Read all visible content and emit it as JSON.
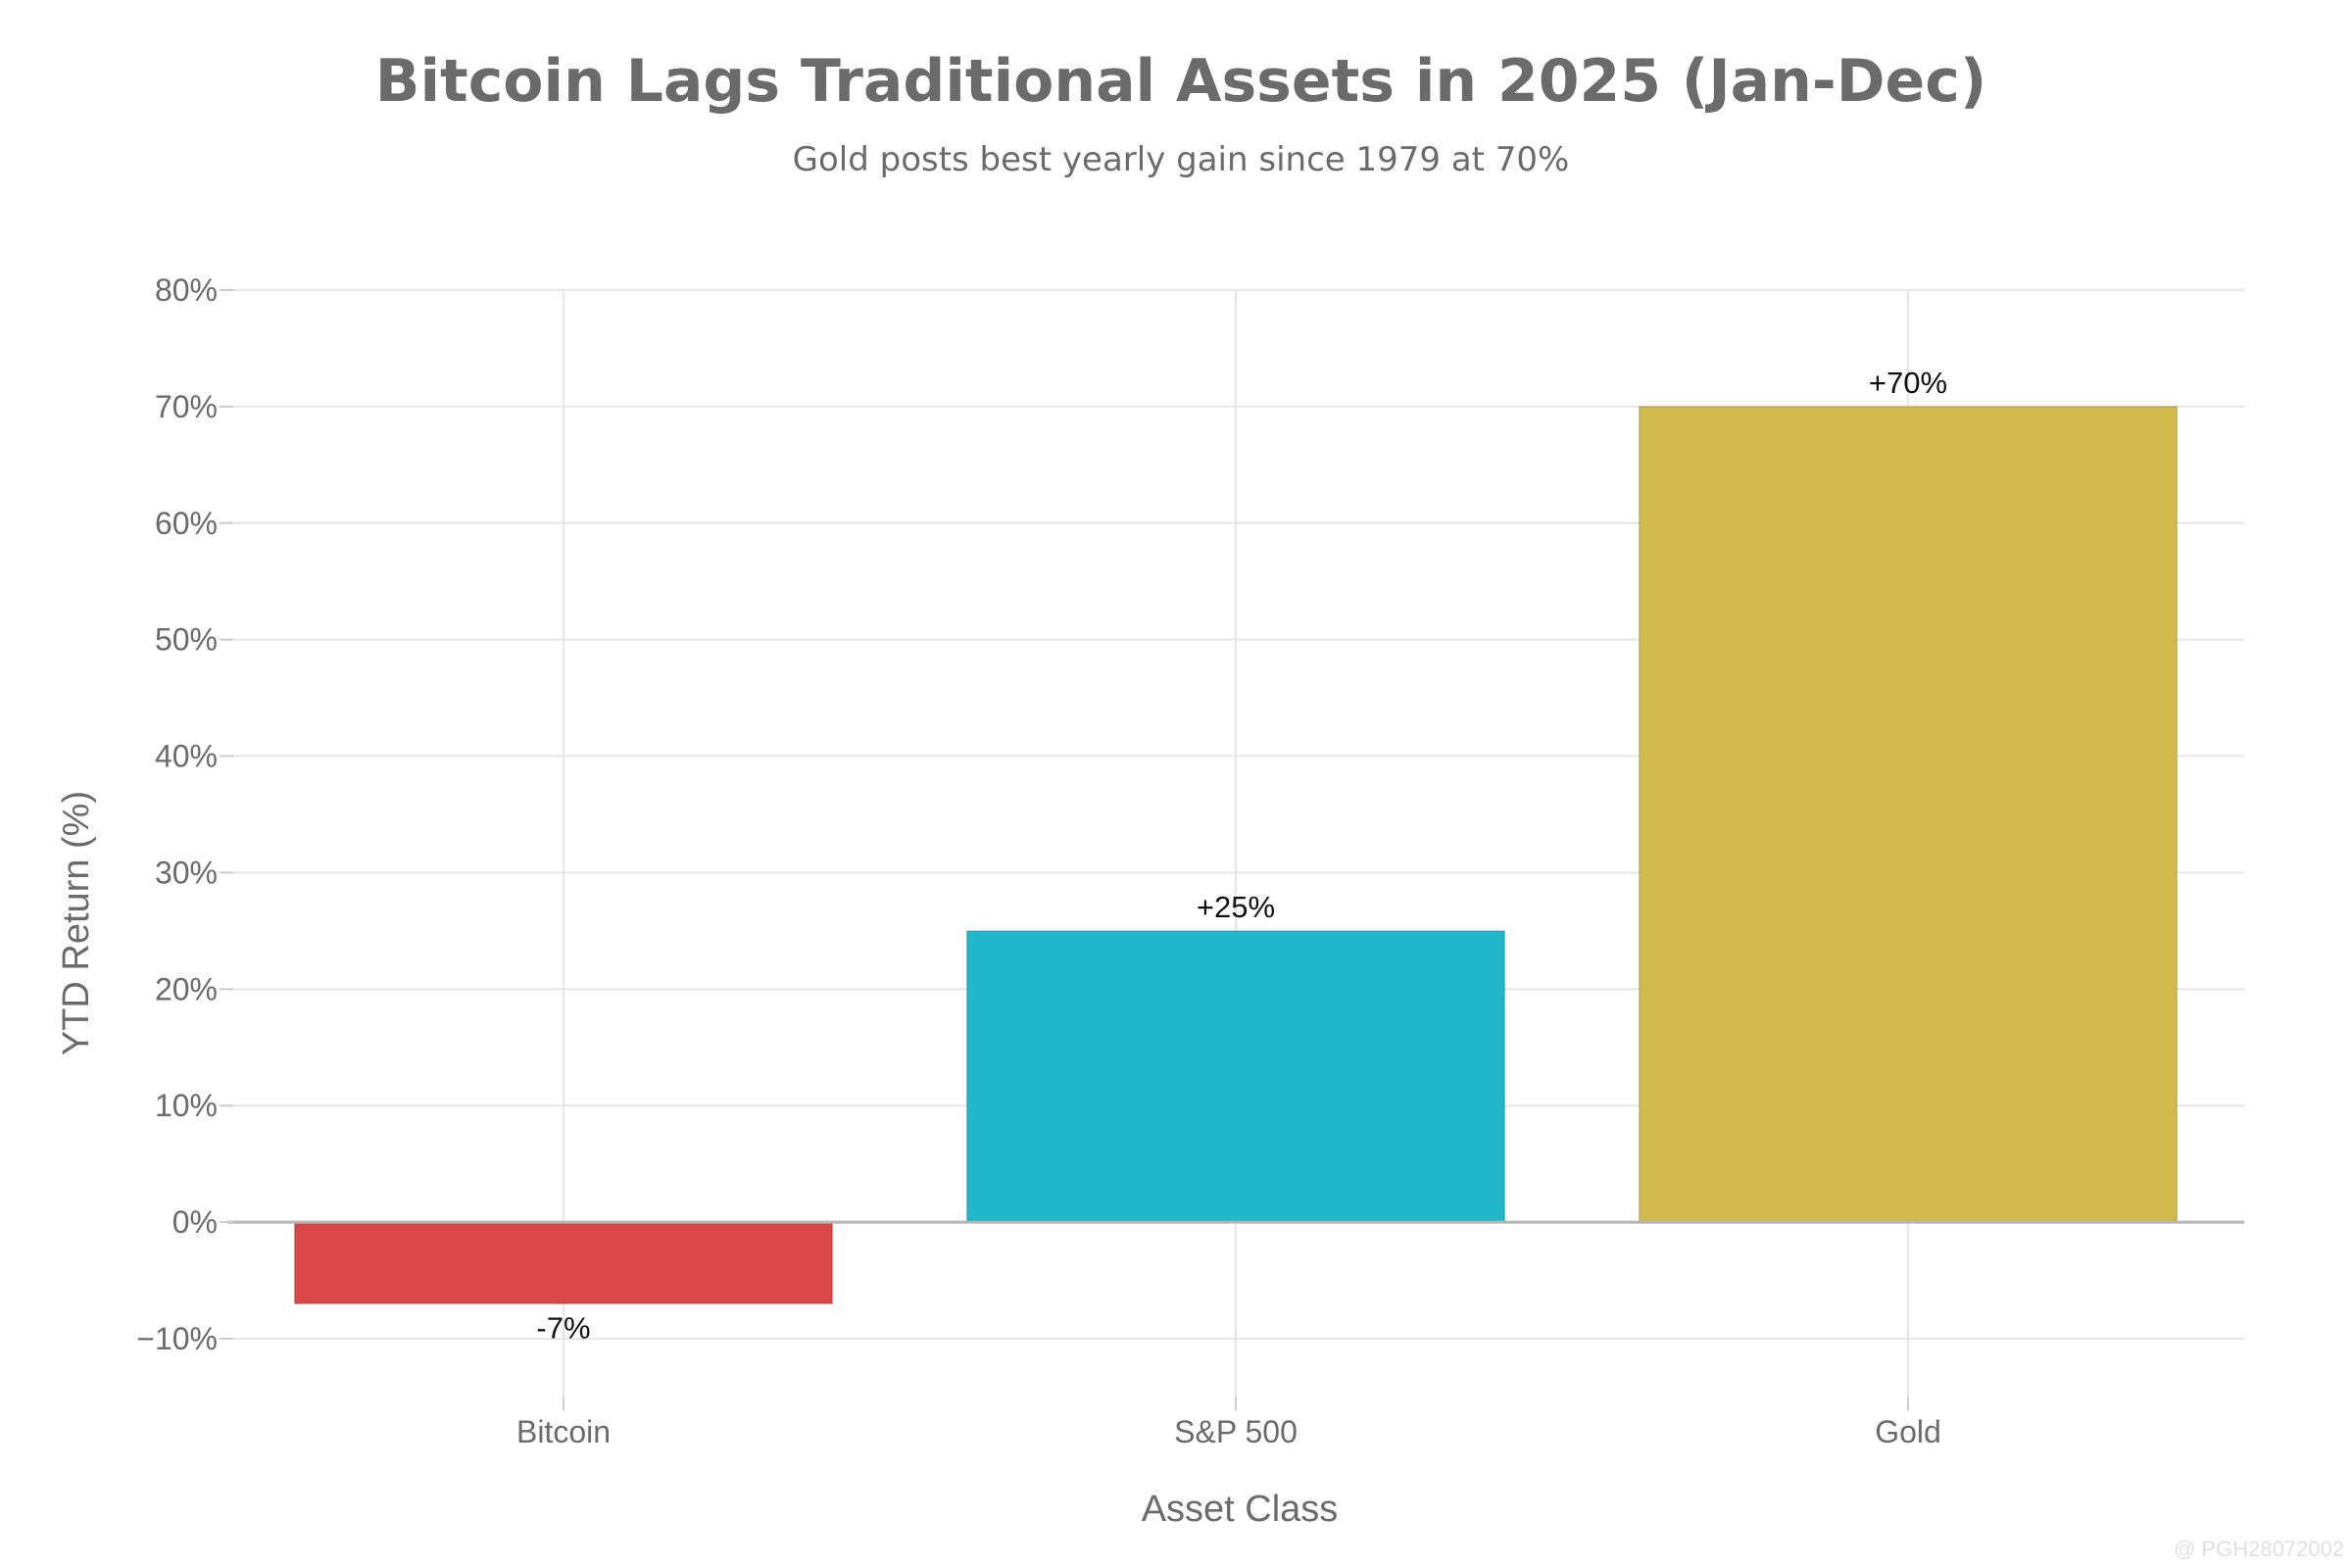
{
  "chart_data": {
    "type": "bar",
    "title": "Bitcoin Lags Traditional Assets in 2025 (Jan-Dec)",
    "subtitle": "Gold posts best yearly gain since 1979 at 70%",
    "xlabel": "Asset Class",
    "ylabel": "YTD Return (%)",
    "categories": [
      "Bitcoin",
      "S&P 500",
      "Gold"
    ],
    "values": [
      -7,
      25,
      70
    ],
    "data_labels": [
      "-7%",
      "+25%",
      "+70%"
    ],
    "bar_colors": [
      "#db4646",
      "#20b7cb",
      "#d2b94c"
    ],
    "ylim": [
      -15,
      80
    ],
    "y_ticks": [
      80,
      70,
      60,
      50,
      40,
      30,
      20,
      10,
      0,
      -10
    ],
    "y_tick_labels": [
      "80%",
      "70%",
      "60%",
      "50%",
      "40%",
      "30%",
      "20%",
      "10%",
      "0%",
      "−10%"
    ],
    "grid": true,
    "legend": "none"
  },
  "watermark": "@ PGH28072002"
}
